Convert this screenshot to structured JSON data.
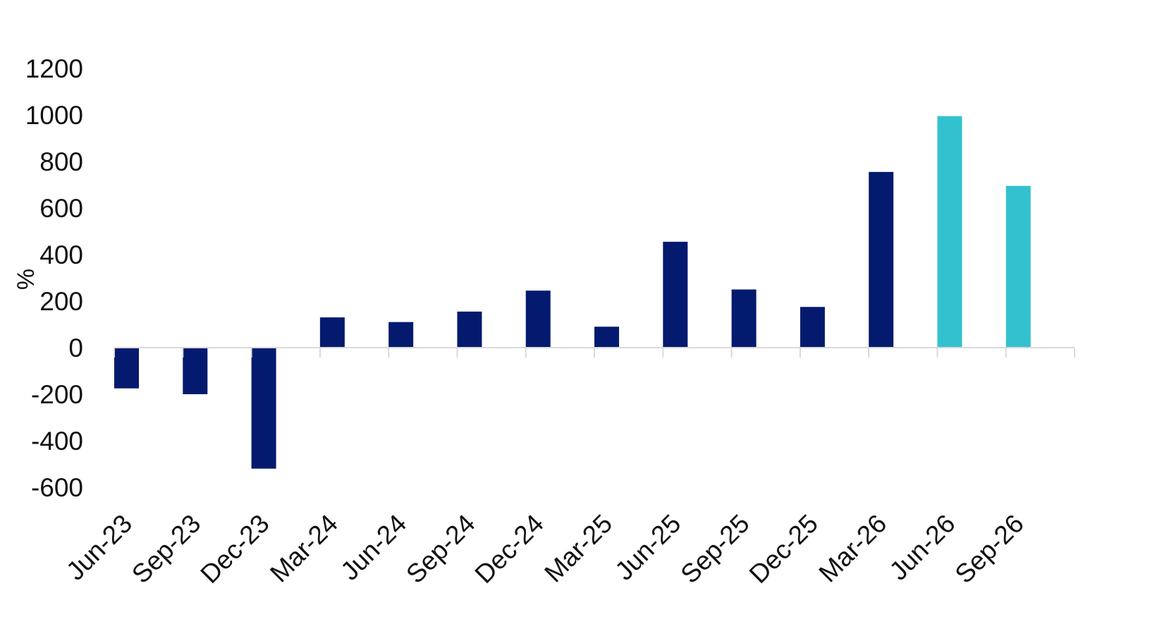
{
  "chart_data": {
    "type": "bar",
    "title": "",
    "xlabel": "",
    "ylabel": "%",
    "ylim": [
      -700,
      1200
    ],
    "yticks": [
      1200,
      1000,
      800,
      600,
      400,
      200,
      0,
      -200,
      -400,
      -600
    ],
    "grid": false,
    "legend": "none",
    "categories": [
      "Jun-23",
      "Sep-23",
      "Dec-23",
      "Mar-24",
      "Jun-24",
      "Sep-24",
      "Dec-24",
      "Mar-25",
      "Jun-25",
      "Sep-25",
      "Dec-25",
      "Mar-26",
      "Jun-26",
      "Sep-26"
    ],
    "values": [
      -175,
      -200,
      -520,
      130,
      110,
      155,
      245,
      90,
      455,
      250,
      175,
      755,
      995,
      695
    ],
    "bar_colors": [
      "#041A6E",
      "#041A6E",
      "#041A6E",
      "#041A6E",
      "#041A6E",
      "#041A6E",
      "#041A6E",
      "#041A6E",
      "#041A6E",
      "#041A6E",
      "#041A6E",
      "#041A6E",
      "#33C1CF",
      "#33C1CF"
    ],
    "axis_color": "#D9D9D9"
  }
}
